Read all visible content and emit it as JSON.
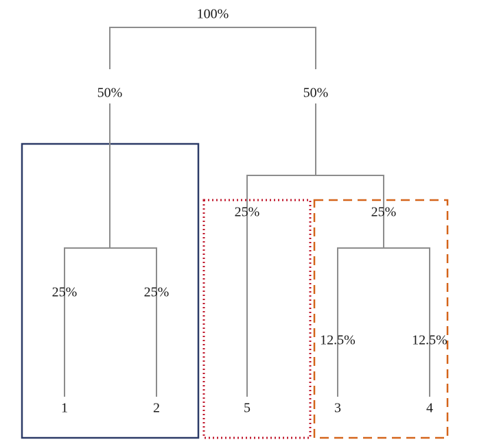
{
  "tree": {
    "root_weight": "100%",
    "branch_weights": {
      "left": "50%",
      "right": "50%",
      "leaf_1": "25%",
      "leaf_2": "25%",
      "leaf_5": "25%",
      "node_34": "25%",
      "leaf_3": "12.5%",
      "leaf_4": "12.5%"
    },
    "leaves": [
      "1",
      "2",
      "5",
      "3",
      "4"
    ]
  },
  "groups": [
    {
      "members": [
        "1",
        "2"
      ],
      "color": "#2b3a67",
      "style": "solid"
    },
    {
      "members": [
        "5"
      ],
      "color": "#c0182c",
      "style": "dotted"
    },
    {
      "members": [
        "3",
        "4"
      ],
      "color": "#d4641a",
      "style": "dashed"
    }
  ],
  "colors": {
    "edge": "#8c8c8c",
    "text": "#1a1a1a"
  }
}
